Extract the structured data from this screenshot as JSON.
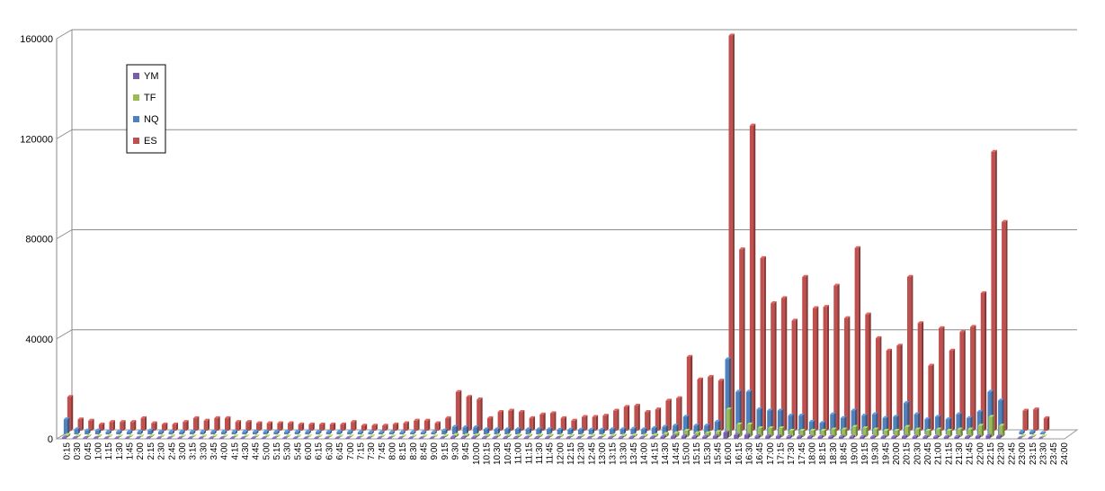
{
  "chart_data": {
    "type": "bar",
    "title": "",
    "xlabel": "",
    "ylabel": "",
    "ylim": [
      0,
      160000
    ],
    "yticks": [
      "0",
      "40000",
      "80000",
      "120000",
      "160000"
    ],
    "grid": true,
    "legend_position": "top-left",
    "categories": [
      "0:15",
      "0:30",
      "0:45",
      "1:00",
      "1:15",
      "1:30",
      "1:45",
      "2:00",
      "2:15",
      "2:30",
      "2:45",
      "3:00",
      "3:15",
      "3:30",
      "3:45",
      "4:00",
      "4:15",
      "4:30",
      "4:45",
      "5:00",
      "5:15",
      "5:30",
      "5:45",
      "6:00",
      "6:15",
      "6:30",
      "6:45",
      "7:00",
      "7:15",
      "7:30",
      "7:45",
      "8:00",
      "8:15",
      "8:30",
      "8:45",
      "9:00",
      "9:15",
      "9:30",
      "9:45",
      "10:00",
      "10:15",
      "10:30",
      "10:45",
      "11:00",
      "11:15",
      "11:30",
      "11:45",
      "12:00",
      "12:15",
      "12:30",
      "12:45",
      "13:00",
      "13:15",
      "13:30",
      "13:45",
      "14:00",
      "14:15",
      "14:30",
      "14:45",
      "15:00",
      "15:15",
      "15:30",
      "15:45",
      "16:00",
      "16:15",
      "16:30",
      "16:45",
      "17:00",
      "17:15",
      "17:30",
      "17:45",
      "18:00",
      "18:15",
      "18:30",
      "18:45",
      "19:00",
      "19:15",
      "19:30",
      "19:45",
      "20:00",
      "20:15",
      "20:30",
      "20:45",
      "21:00",
      "21:15",
      "21:30",
      "21:45",
      "22:00",
      "22:15",
      "22:30",
      "22:45",
      "23:00",
      "23:15",
      "23:30",
      "23:45",
      "24:00"
    ],
    "series": [
      {
        "name": "YM",
        "color": "#7a5ea8",
        "values": [
          500,
          300,
          300,
          300,
          200,
          200,
          200,
          200,
          300,
          200,
          200,
          200,
          200,
          200,
          200,
          200,
          200,
          200,
          200,
          200,
          200,
          200,
          200,
          200,
          200,
          200,
          200,
          200,
          200,
          200,
          200,
          200,
          200,
          200,
          200,
          200,
          300,
          600,
          500,
          500,
          400,
          400,
          400,
          400,
          400,
          400,
          400,
          300,
          300,
          300,
          300,
          300,
          400,
          400,
          500,
          400,
          500,
          800,
          1000,
          1000,
          800,
          800,
          1000,
          2500,
          1500,
          1500,
          1000,
          1000,
          1000,
          800,
          800,
          700,
          700,
          800,
          800,
          800,
          800,
          700,
          700,
          700,
          900,
          800,
          700,
          800,
          700,
          800,
          700,
          900,
          1200,
          1000,
          0,
          200,
          200,
          100,
          0,
          0
        ]
      },
      {
        "name": "TF",
        "color": "#9bbb59",
        "values": [
          800,
          400,
          300,
          300,
          200,
          200,
          200,
          200,
          300,
          200,
          200,
          200,
          200,
          200,
          200,
          200,
          200,
          200,
          200,
          200,
          200,
          200,
          200,
          200,
          200,
          200,
          200,
          200,
          200,
          200,
          200,
          200,
          200,
          200,
          200,
          200,
          400,
          800,
          700,
          700,
          500,
          500,
          500,
          500,
          500,
          500,
          500,
          400,
          400,
          400,
          400,
          400,
          500,
          500,
          600,
          500,
          700,
          1200,
          1500,
          2500,
          1500,
          1500,
          2000,
          11000,
          5000,
          5000,
          3500,
          3500,
          3500,
          2500,
          2500,
          2500,
          2500,
          3000,
          3000,
          4000,
          3500,
          3000,
          2500,
          2500,
          4000,
          3000,
          2500,
          3000,
          2500,
          3000,
          3000,
          4500,
          8000,
          4500,
          0,
          300,
          300,
          200,
          0,
          0
        ]
      },
      {
        "name": "NQ",
        "color": "#4f81bd",
        "values": [
          6000,
          2000,
          1500,
          1500,
          1000,
          1000,
          1000,
          1000,
          1500,
          1000,
          1000,
          1000,
          1000,
          1000,
          1000,
          1000,
          1000,
          1000,
          1000,
          1000,
          1000,
          1000,
          1000,
          1000,
          1000,
          1000,
          1000,
          1000,
          800,
          800,
          800,
          800,
          800,
          800,
          800,
          800,
          1500,
          3000,
          2800,
          2800,
          2000,
          2000,
          2000,
          2000,
          2000,
          2000,
          2000,
          1800,
          1800,
          1800,
          1800,
          1800,
          2000,
          2000,
          2200,
          2000,
          2500,
          3000,
          3500,
          7000,
          3500,
          3500,
          5000,
          30000,
          17000,
          17000,
          10000,
          9500,
          9500,
          7500,
          7500,
          5000,
          4500,
          8000,
          6500,
          9500,
          7500,
          8000,
          6500,
          7000,
          12500,
          8000,
          6000,
          7000,
          6000,
          8000,
          6500,
          9000,
          17000,
          13500,
          0,
          1000,
          1000,
          500,
          0,
          0
        ]
      },
      {
        "name": "ES",
        "color": "#c0504d",
        "values": [
          13500,
          4500,
          4000,
          2500,
          3500,
          3500,
          3500,
          5000,
          3000,
          2500,
          2500,
          3500,
          5000,
          4000,
          5000,
          5000,
          3500,
          3500,
          3000,
          3000,
          3000,
          3000,
          2500,
          2500,
          2500,
          2500,
          2500,
          3500,
          2000,
          2000,
          2000,
          2500,
          3000,
          4000,
          4000,
          3000,
          5000,
          15500,
          13500,
          12500,
          5000,
          7500,
          8000,
          7500,
          5000,
          6500,
          7000,
          5000,
          4000,
          5500,
          5500,
          6000,
          8000,
          9500,
          10000,
          7500,
          8500,
          12000,
          13000,
          29500,
          20500,
          21500,
          20000,
          158000,
          72500,
          122000,
          69000,
          51000,
          53000,
          44000,
          61500,
          49000,
          49500,
          58000,
          45000,
          73000,
          46500,
          37000,
          32000,
          34000,
          61500,
          43000,
          26000,
          41000,
          32000,
          39500,
          41500,
          55000,
          111500,
          83500,
          0,
          8000,
          8500,
          5000,
          0,
          0
        ]
      }
    ]
  }
}
